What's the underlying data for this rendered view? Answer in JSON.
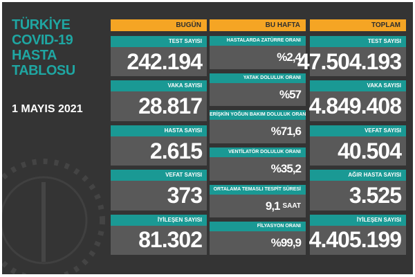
{
  "title": [
    "TÜRKİYE",
    "COVID-19",
    "HASTA",
    "TABLOSU"
  ],
  "date": "1 MAYIS 2021",
  "columns": [
    {
      "header": "BUGÜN",
      "items": [
        {
          "label": "TEST SAYISI",
          "value": "242.194"
        },
        {
          "label": "VAKA SAYISI",
          "value": "28.817"
        },
        {
          "label": "HASTA SAYISI",
          "value": "2.615"
        },
        {
          "label": "VEFAT SAYISI",
          "value": "373"
        },
        {
          "label": "İYİLEŞEN SAYISI",
          "value": "81.302"
        }
      ]
    },
    {
      "header": "BU HAFTA",
      "items": [
        {
          "label": "HASTALARDA ZATÜRRE ORANI",
          "value": "%2,4"
        },
        {
          "label": "YATAK DOLULUK ORANI",
          "value": "%57"
        },
        {
          "label": "ERİŞKİN YOĞUN BAKIM DOLULUK ORANI",
          "value": "%71,6"
        },
        {
          "label": "VENTİLATÖR DOLULUK ORANI",
          "value": "%35,2"
        },
        {
          "label": "ORTALAMA TEMASLI TESPİT SÜRESİ",
          "value": "9,1",
          "unit": "SAAT"
        },
        {
          "label": "FİLYASYON ORANI",
          "value": "%99,9"
        }
      ]
    },
    {
      "header": "TOPLAM",
      "items": [
        {
          "label": "TEST SAYISI",
          "value": "47.504.193"
        },
        {
          "label": "VAKA SAYISI",
          "value": "4.849.408"
        },
        {
          "label": "VEFAT SAYISI",
          "value": "40.504"
        },
        {
          "label": "AĞIR HASTA SAYISI",
          "value": "3.525"
        },
        {
          "label": "İYİLEŞEN SAYISI",
          "value": "4.405.199"
        }
      ]
    }
  ]
}
